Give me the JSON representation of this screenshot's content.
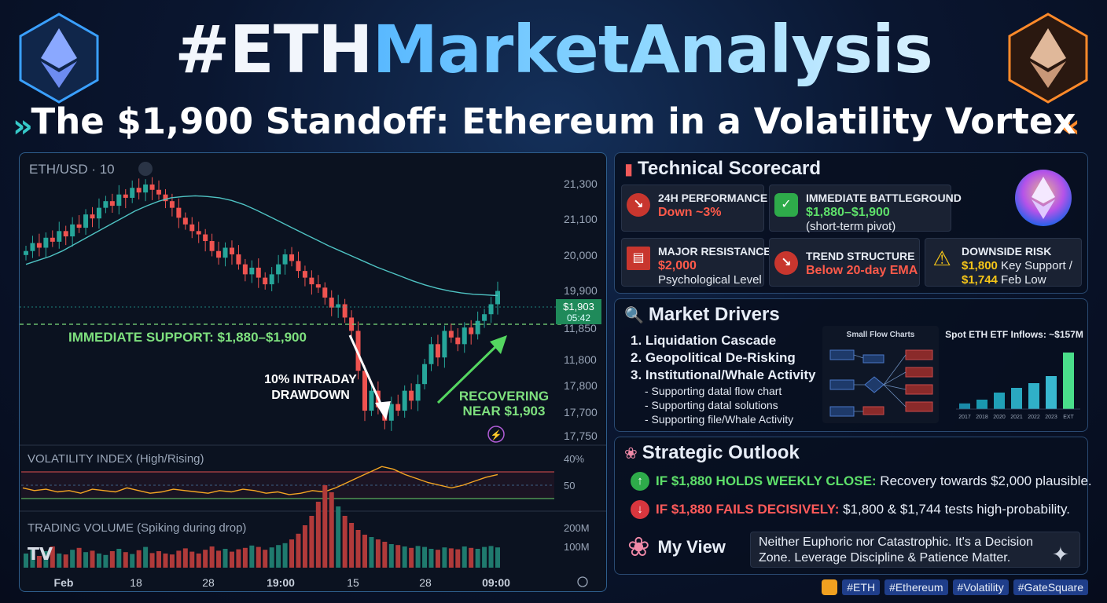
{
  "header": {
    "title_prefix": "#ETH",
    "title_suffix": "MarketAnalysis",
    "subtitle": "The $1,900 Standoff: Ethereum in a Volatility Vortex"
  },
  "chart": {
    "symbol_label": "ETH/USD · 10",
    "price_ticks": [
      "21,300",
      "21,100",
      "20,000",
      "19,900",
      "11,850",
      "11,800",
      "17,800",
      "17,700",
      "17,750"
    ],
    "current_price": "$1,903",
    "countdown": "05:42",
    "support_label": "IMMEDIATE SUPPORT: $1,880–$1,900",
    "drawdown_label_1": "10% INTRADAY",
    "drawdown_label_2": "DRAWDOWN",
    "recovering_label_1": "RECOVERING",
    "recovering_label_2": "NEAR $1,903",
    "volatility_title": "VOLATILITY INDEX (High/Rising)",
    "volatility_ticks": [
      "40%",
      "50"
    ],
    "volume_title": "TRADING VOLUME (Spiking during drop)",
    "volume_ticks": [
      "200M",
      "100M"
    ],
    "x_labels": [
      "Feb",
      "18",
      "28",
      "19:00",
      "15",
      "28",
      "09:00"
    ],
    "colors": {
      "up": "#26a69a",
      "down": "#ef5350",
      "ema": "#4fc3c3",
      "support": "#7ee07e",
      "vol_line": "#f5a623"
    }
  },
  "chart_data": {
    "type": "candlestick",
    "closes": [
      20300,
      20420,
      20350,
      20500,
      20440,
      20600,
      20520,
      20700,
      20650,
      20850,
      20790,
      20950,
      21050,
      20980,
      21150,
      21100,
      21250,
      21180,
      21300,
      21220,
      21150,
      21050,
      20950,
      20800,
      20700,
      20600,
      20550,
      20450,
      20300,
      20200,
      20350,
      20250,
      20100,
      19950,
      20050,
      19900,
      19800,
      19950,
      20100,
      20250,
      20150,
      20000,
      19900,
      19800,
      19750,
      19600,
      19450,
      19500,
      19300,
      19100,
      18500,
      17900,
      18200,
      17950,
      17750,
      18000,
      17900,
      18200,
      18050,
      18300,
      18600,
      18900,
      18700,
      19100,
      19000,
      18900,
      19150,
      19050,
      19250,
      19350,
      19500,
      19700
    ],
    "ema": [
      20100,
      20160,
      20220,
      20300,
      20400,
      20500,
      20600,
      20700,
      20800,
      20900,
      20980,
      21050,
      21100,
      21120,
      21130,
      21120,
      21100,
      21060,
      21000,
      20920,
      20830,
      20740,
      20650,
      20560,
      20470,
      20380,
      20300,
      20220,
      20140,
      20060,
      19990,
      19920,
      19850,
      19790,
      19740,
      19700,
      19670,
      19650,
      19640,
      19630
    ],
    "volatility_index": [
      48,
      46,
      47,
      45,
      46,
      44,
      47,
      46,
      45,
      48,
      46,
      44,
      45,
      47,
      46,
      45,
      44,
      46,
      45,
      47,
      46,
      44,
      45,
      43,
      44,
      46,
      45,
      48,
      52,
      56,
      60,
      64,
      62,
      58,
      55,
      52,
      50,
      48,
      50,
      53,
      56,
      58
    ],
    "volume": [
      30,
      40,
      25,
      35,
      45,
      30,
      28,
      38,
      42,
      33,
      36,
      30,
      27,
      35,
      40,
      33,
      29,
      37,
      44,
      31,
      35,
      30,
      28,
      36,
      41,
      34,
      30,
      38,
      45,
      36,
      40,
      34,
      39,
      42,
      47,
      44,
      38,
      43,
      48,
      52,
      60,
      72,
      90,
      110,
      140,
      175,
      160,
      130,
      110,
      95,
      80,
      70,
      65,
      60,
      55,
      50,
      48,
      45,
      42,
      46,
      44,
      40,
      38,
      43,
      41,
      39,
      45,
      42,
      40,
      44,
      46,
      43
    ],
    "ylim": [
      17700,
      21300
    ]
  },
  "scorecard": {
    "title": "Technical Scorecard",
    "perf_label": "24H PERFORMANCE",
    "perf_value": "Down ~3%",
    "battle_label": "IMMEDIATE BATTLEGROUND",
    "battle_value": "$1,880–$1,900",
    "battle_sub": "(short-term pivot)",
    "res_label": "MAJOR RESISTANCE",
    "res_value": "$2,000",
    "res_sub": "Psychological Level",
    "trend_label": "TREND STRUCTURE",
    "trend_value": "Below 20-day EMA",
    "risk_label": "DOWNSIDE RISK",
    "risk_line1_value": "$1,800",
    "risk_line1_text": " Key Support /",
    "risk_line2_value": "$1,744",
    "risk_line2_text": " Feb Low"
  },
  "drivers": {
    "title": "Market Drivers",
    "items": [
      "1. Liquidation Cascade",
      "2. Geopolitical De-Risking",
      "3. Institutional/Whale Activity"
    ],
    "subs": [
      "- Supporting datal flow chart",
      "- Supporting datal solutions",
      "- Supporting file/Whale Activity"
    ],
    "flow_title": "Small Flow Charts",
    "etf_title": "Spot ETH ETF Inflows: ~$157M",
    "etf_x": [
      "2017",
      "2018",
      "2020",
      "2021",
      "2022",
      "2023",
      "EXT"
    ],
    "etf_values": [
      12,
      20,
      35,
      45,
      55,
      70,
      120
    ]
  },
  "outlook": {
    "title": "Strategic Outlook",
    "bull_label": "IF $1,880 HOLDS WEEKLY CLOSE:",
    "bull_text": " Recovery towards $2,000 plausible.",
    "bear_label": "IF $1,880 FAILS DECISIVELY:",
    "bear_text": " $1,800 & $1,744 tests high-probability.",
    "view_label": "My View",
    "view_text_1": "Neither Euphoric nor Catastrophic. It's a Decision",
    "view_text_2": "Zone. Leverage Discipline & Patience Matter."
  },
  "tags": [
    "#ETH",
    "#Ethereum",
    "#Volatility",
    "#GateSquare"
  ]
}
